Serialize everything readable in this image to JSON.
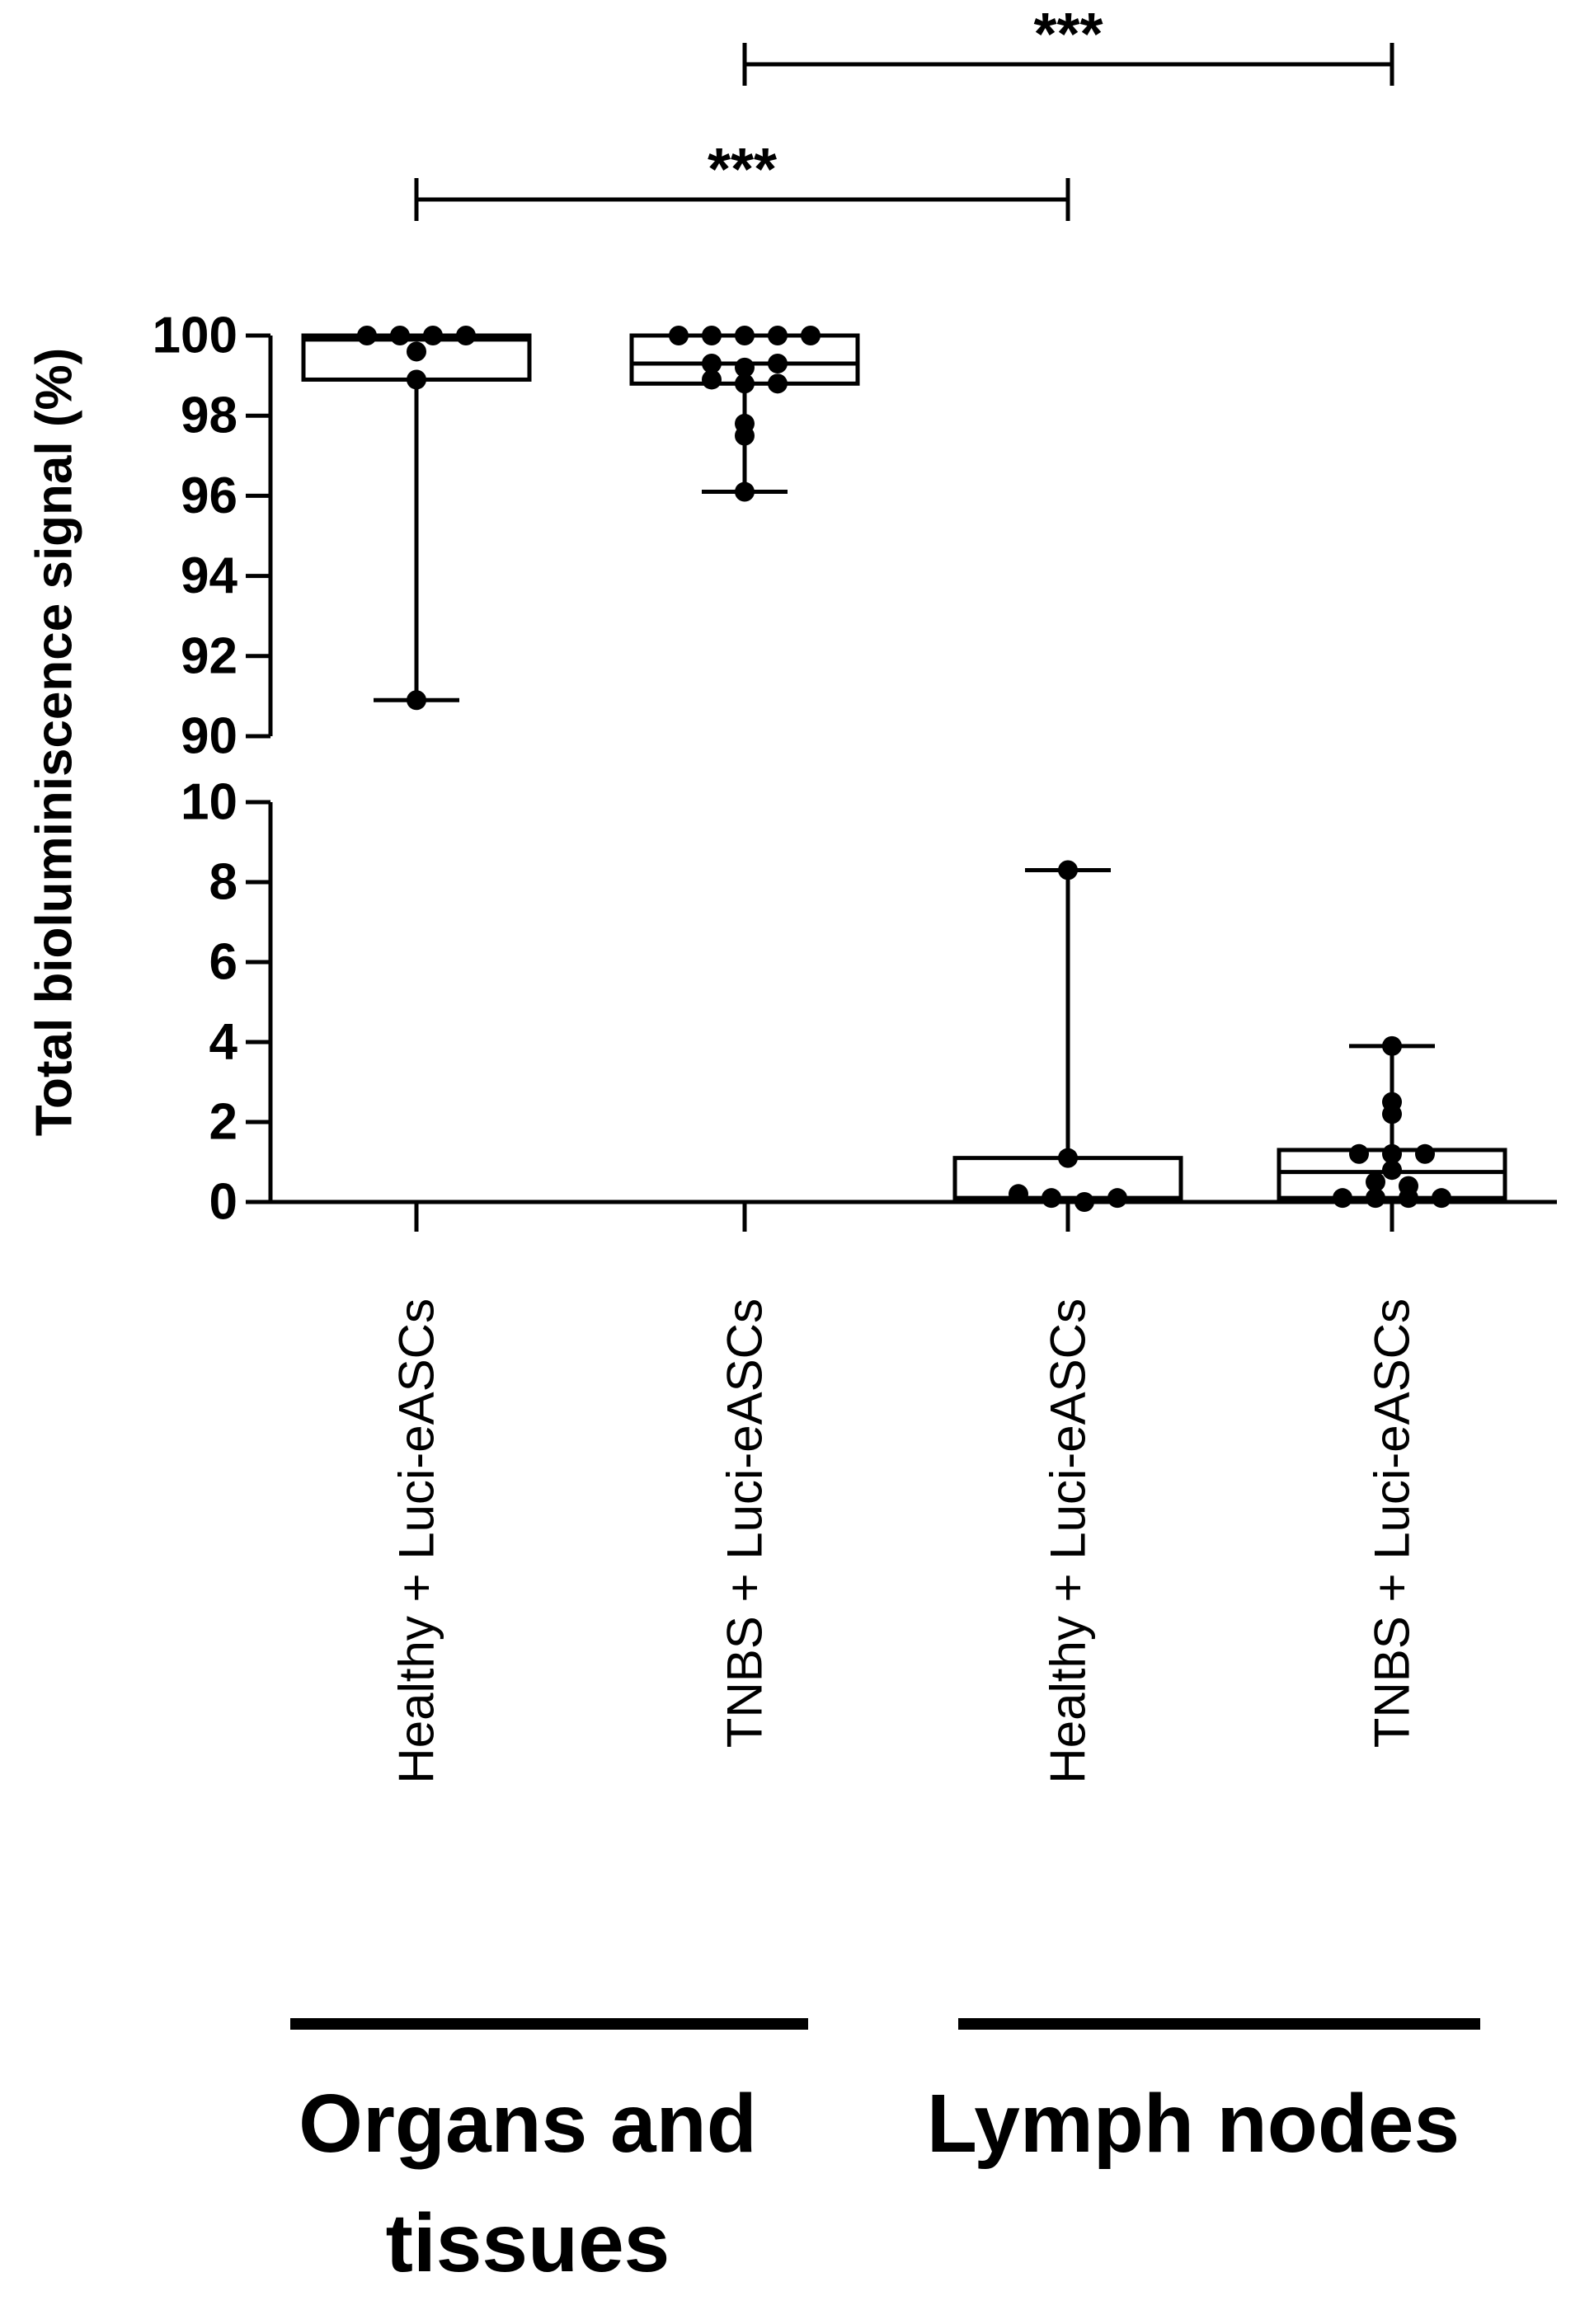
{
  "chart_data": {
    "type": "box",
    "ylabel": "Total bioluminiscence signal (%)",
    "y_axis_break": true,
    "y_segments": [
      {
        "range": [
          90,
          100
        ],
        "ticks": [
          "100",
          "98",
          "96",
          "94",
          "92",
          "90"
        ],
        "tick_values": [
          100,
          98,
          96,
          94,
          92,
          90
        ]
      },
      {
        "range": [
          0,
          10
        ],
        "ticks": [
          "10",
          "8",
          "6",
          "4",
          "2",
          "0"
        ],
        "tick_values": [
          10,
          8,
          6,
          4,
          2,
          0
        ]
      }
    ],
    "categories": [
      "Healthy + Luci-eASCs",
      "TNBS + Luci-eASCs",
      "Healthy + Luci-eASCs",
      "TNBS + Luci-eASCs"
    ],
    "groups": [
      {
        "label_lines": [
          "Organs and",
          "tissues"
        ],
        "categories": [
          0,
          1
        ]
      },
      {
        "label_lines": [
          "Lymph nodes"
        ],
        "categories": [
          2,
          3
        ]
      }
    ],
    "boxes": [
      {
        "min": 90.9,
        "q1": 98.9,
        "median": 99.9,
        "q3": 100.0,
        "max": 100.0,
        "points": [
          100.0,
          100.0,
          100.0,
          100.0,
          99.6,
          98.9,
          90.9
        ]
      },
      {
        "min": 96.1,
        "q1": 98.8,
        "median": 99.3,
        "q3": 100.0,
        "max": 100.0,
        "points": [
          100.0,
          100.0,
          100.0,
          100.0,
          100.0,
          99.3,
          99.2,
          99.3,
          98.9,
          98.8,
          98.8,
          97.8,
          97.5,
          96.1
        ]
      },
      {
        "min": 0.0,
        "q1": 0.0,
        "median": 0.1,
        "q3": 1.1,
        "max": 8.3,
        "points": [
          8.3,
          1.1,
          0.2,
          0.1,
          0.0,
          0.1
        ]
      },
      {
        "min": 0.0,
        "q1": 0.1,
        "median": 0.75,
        "q3": 1.3,
        "max": 3.9,
        "points": [
          3.9,
          2.5,
          2.2,
          1.2,
          1.2,
          1.2,
          0.8,
          0.5,
          0.4,
          0.1,
          0.1,
          0.1,
          0.1
        ]
      }
    ],
    "significance": [
      {
        "from": 1,
        "to": 3,
        "label": "***"
      },
      {
        "from": 0,
        "to": 2,
        "label": "***"
      }
    ]
  }
}
